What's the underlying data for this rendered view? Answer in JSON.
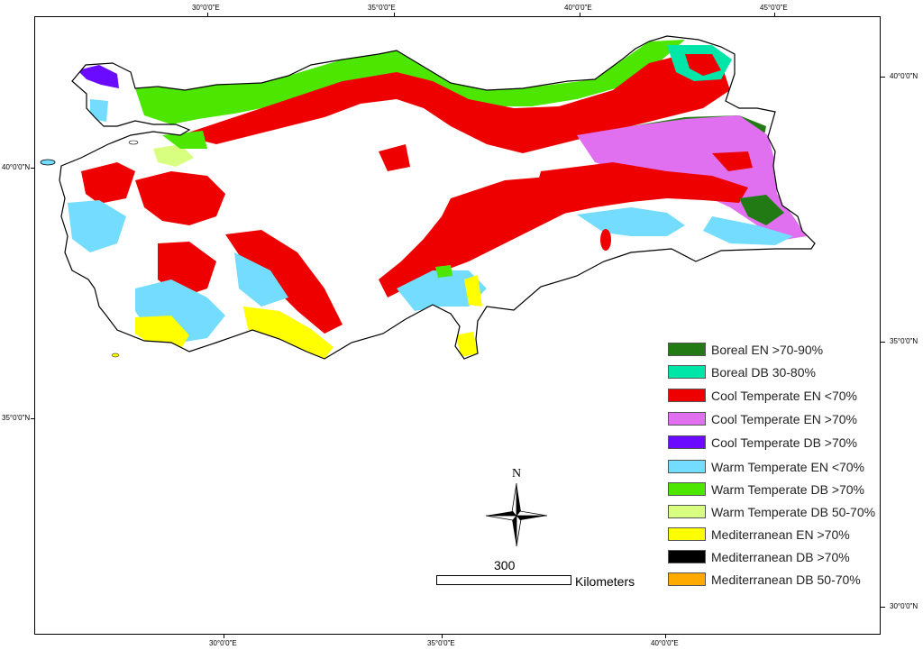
{
  "map": {
    "top_ticks": [
      "30°0'0\"E",
      "35°0'0\"E",
      "40°0'0\"E",
      "45°0'0\"E"
    ],
    "bottom_ticks": [
      "30°0'0\"E",
      "35°0'0\"E",
      "40°0'0\"E"
    ],
    "left_ticks": [
      "40°0'0\"N",
      "35°0'0\"N"
    ],
    "right_ticks": [
      "40°0'0\"N",
      "35°0'0\"N",
      "30°0'0\"N"
    ]
  },
  "legend": {
    "items": [
      {
        "label": "Boreal EN >70-90%",
        "color": "#227a14"
      },
      {
        "label": "Boreal DB 30-80%",
        "color": "#00e6a9"
      },
      {
        "label": "Cool Temperate EN <70%",
        "color": "#ee0000"
      },
      {
        "label": "Cool Temperate EN >70%",
        "color": "#e070f0"
      },
      {
        "label": "Cool Temperate DB >70%",
        "color": "#6a0aff"
      },
      {
        "label": "Warm Temperate EN <70%",
        "color": "#73dcff"
      },
      {
        "label": "Warm Temperate DB >70%",
        "color": "#4ce600"
      },
      {
        "label": "Warm Temperate DB 50-70%",
        "color": "#d8ff80"
      },
      {
        "label": "Mediterranean EN >70%",
        "color": "#ffff00"
      },
      {
        "label": "Mediterranean DB >70%",
        "color": "#000000"
      },
      {
        "label": "Mediterranean DB 50-70%",
        "color": "#ffaa00"
      }
    ]
  },
  "north_arrow": {
    "label": "N"
  },
  "scale": {
    "value": "300",
    "unit": "Kilometers"
  }
}
